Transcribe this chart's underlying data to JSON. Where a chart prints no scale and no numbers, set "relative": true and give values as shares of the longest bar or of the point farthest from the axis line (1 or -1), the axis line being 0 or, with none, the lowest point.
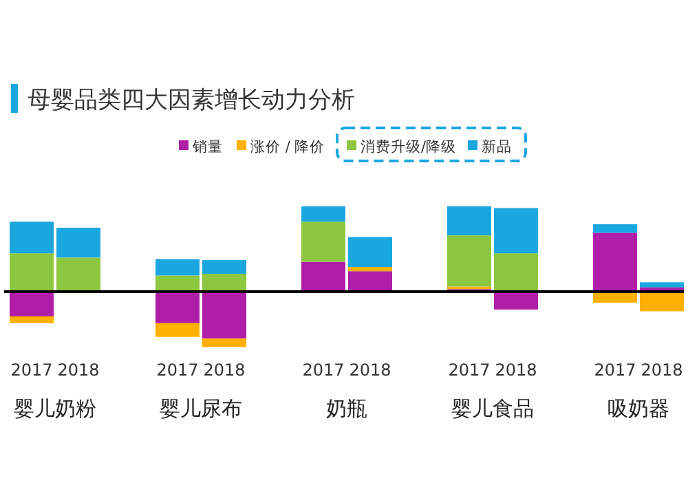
{
  "chart_data": {
    "type": "bar",
    "title": "母婴品类四大因素增长动力分析",
    "relative": true,
    "stacked": true,
    "legend": "top",
    "categories": [
      "2017",
      "2018",
      "2017",
      "2018",
      "2017",
      "2018",
      "2017",
      "2018",
      "2017",
      "2018"
    ],
    "annotations": [
      "婴儿奶粉",
      "婴儿尿布",
      "奶瓶",
      "婴儿食品",
      "吸奶器"
    ],
    "series": [
      {
        "name": "销量",
        "color": "#b01ea8",
        "values": [
          -0.29,
          0,
          -0.37,
          -0.55,
          0.35,
          0.24,
          0.03,
          -0.21,
          0.69,
          0.05
        ]
      },
      {
        "name": "涨价 / 降价",
        "color": "#ffb000",
        "values": [
          -0.08,
          0,
          -0.16,
          -0.1,
          0,
          0.05,
          0.03,
          0,
          -0.13,
          -0.23
        ]
      },
      {
        "name": "消费升级/降级",
        "color": "#8dc63f",
        "values": [
          0.45,
          0.4,
          0.19,
          0.21,
          0.47,
          0,
          0.6,
          0.45,
          0,
          0
        ]
      },
      {
        "name": "新品",
        "color": "#1aa7e0",
        "values": [
          0.37,
          0.35,
          0.19,
          0.16,
          0.18,
          0.35,
          0.34,
          0.53,
          0.1,
          0.06
        ]
      }
    ]
  }
}
